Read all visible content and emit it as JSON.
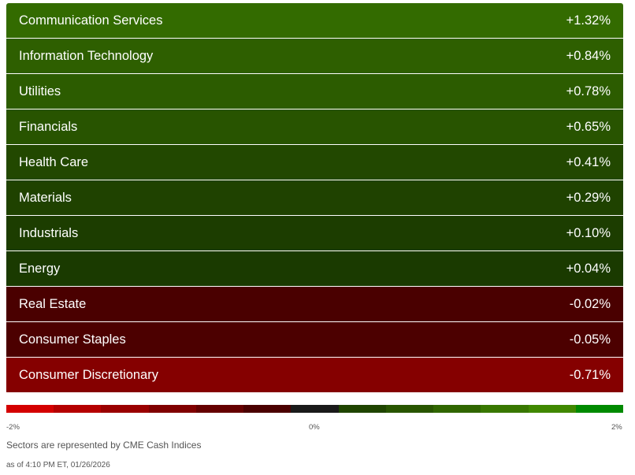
{
  "sectors": [
    {
      "name": "Communication Services",
      "change": "+1.32%",
      "color": "#336b00"
    },
    {
      "name": "Information Technology",
      "change": "+0.84%",
      "color": "#2e5f00"
    },
    {
      "name": "Utilities",
      "change": "+0.78%",
      "color": "#2c5c00"
    },
    {
      "name": "Financials",
      "change": "+0.65%",
      "color": "#285400"
    },
    {
      "name": "Health Care",
      "change": "+0.41%",
      "color": "#224800"
    },
    {
      "name": "Materials",
      "change": "+0.29%",
      "color": "#1f4200"
    },
    {
      "name": "Industrials",
      "change": "+0.10%",
      "color": "#1c3d00"
    },
    {
      "name": "Energy",
      "change": "+0.04%",
      "color": "#1a3a00"
    },
    {
      "name": "Real Estate",
      "change": "-0.02%",
      "color": "#4a0000"
    },
    {
      "name": "Consumer Staples",
      "change": "-0.05%",
      "color": "#4c0000"
    },
    {
      "name": "Consumer Discretionary",
      "change": "-0.71%",
      "color": "#850000"
    }
  ],
  "scale": {
    "colors": [
      "#d40000",
      "#b50000",
      "#9a0000",
      "#800000",
      "#650000",
      "#4a0000",
      "#1a1a1a",
      "#1f4400",
      "#285500",
      "#306600",
      "#387700",
      "#408800",
      "#008a00"
    ],
    "min_label": "-2%",
    "mid_label": "0%",
    "max_label": "2%"
  },
  "footer": {
    "note": "Sectors are represented by CME Cash Indices",
    "as_of": "as of 4:10 PM ET, 01/26/2026"
  }
}
